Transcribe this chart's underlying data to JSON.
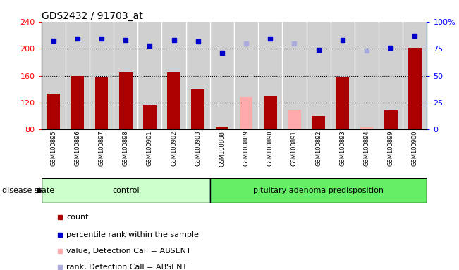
{
  "title": "GDS2432 / 91703_at",
  "samples": [
    "GSM100895",
    "GSM100896",
    "GSM100897",
    "GSM100898",
    "GSM100901",
    "GSM100902",
    "GSM100903",
    "GSM100888",
    "GSM100889",
    "GSM100890",
    "GSM100891",
    "GSM100892",
    "GSM100893",
    "GSM100894",
    "GSM100899",
    "GSM100900"
  ],
  "bar_values": [
    133,
    160,
    157,
    165,
    116,
    165,
    140,
    84,
    128,
    130,
    110,
    100,
    157,
    85,
    108,
    201
  ],
  "bar_absent": [
    false,
    false,
    false,
    false,
    false,
    false,
    false,
    false,
    true,
    false,
    true,
    false,
    false,
    true,
    false,
    false
  ],
  "percentile_values": [
    212,
    215,
    215,
    213,
    204,
    213,
    211,
    194,
    207,
    215,
    207,
    198,
    213,
    197,
    201,
    219
  ],
  "percentile_absent": [
    false,
    false,
    false,
    false,
    false,
    false,
    false,
    false,
    true,
    false,
    true,
    false,
    false,
    true,
    false,
    false
  ],
  "n_control": 7,
  "n_disease": 9,
  "ylim_left": [
    80,
    240
  ],
  "ylim_right": [
    0,
    100
  ],
  "yticks_left": [
    80,
    120,
    160,
    200,
    240
  ],
  "yticks_right": [
    0,
    25,
    50,
    75,
    100
  ],
  "bar_color_present": "#aa0000",
  "bar_color_absent": "#ffaaaa",
  "dot_color_present": "#0000cc",
  "dot_color_absent": "#aaaadd",
  "control_bg": "#ccffcc",
  "disease_bg": "#66ee66",
  "plot_bg": "#d8d8d8",
  "cell_bg": "#d0d0d0",
  "legend_items": [
    {
      "label": "count",
      "color": "#aa0000"
    },
    {
      "label": "percentile rank within the sample",
      "color": "#0000cc"
    },
    {
      "label": "value, Detection Call = ABSENT",
      "color": "#ffaaaa"
    },
    {
      "label": "rank, Detection Call = ABSENT",
      "color": "#aaaadd"
    }
  ]
}
